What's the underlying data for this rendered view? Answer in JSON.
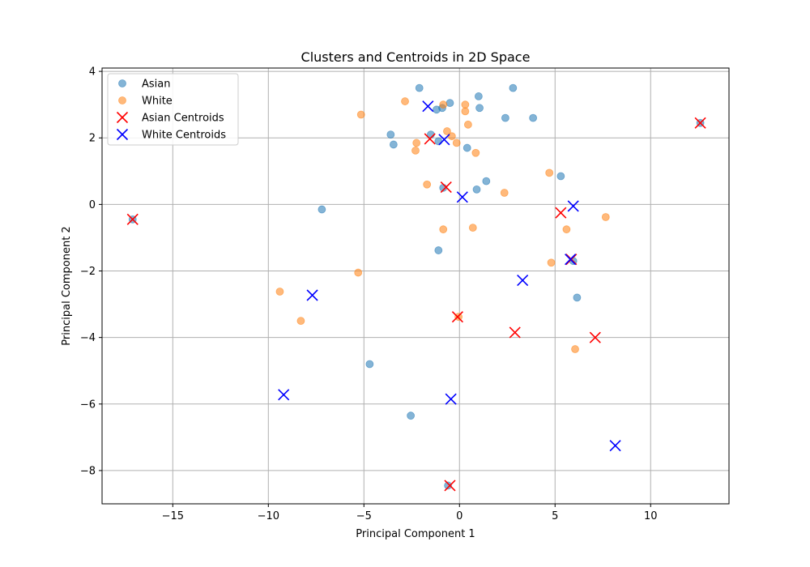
{
  "chart_data": {
    "type": "scatter",
    "title": "Clusters and Centroids in 2D Space",
    "xlabel": "Principal Component 1",
    "ylabel": "Principal Component 2",
    "xlim": [
      -18.7,
      14.1
    ],
    "ylim": [
      -9.0,
      4.1
    ],
    "xticks": [
      -15,
      -10,
      -5,
      0,
      5,
      10
    ],
    "yticks": [
      -8,
      -6,
      -4,
      -2,
      0,
      2,
      4
    ],
    "grid": true,
    "legend_position": "top-left",
    "series": [
      {
        "name": "Asian",
        "marker": "circle",
        "color": "#1f77b4",
        "points": [
          [
            -2.1,
            3.5
          ],
          [
            -1.2,
            2.85
          ],
          [
            -0.9,
            2.9
          ],
          [
            -0.5,
            3.05
          ],
          [
            1.0,
            3.25
          ],
          [
            1.05,
            2.9
          ],
          [
            2.8,
            3.5
          ],
          [
            2.4,
            2.6
          ],
          [
            3.85,
            2.6
          ],
          [
            -3.6,
            2.1
          ],
          [
            -3.45,
            1.8
          ],
          [
            -1.5,
            2.1
          ],
          [
            -1.1,
            1.9
          ],
          [
            0.4,
            1.7
          ],
          [
            -0.85,
            0.5
          ],
          [
            1.4,
            0.7
          ],
          [
            0.9,
            0.45
          ],
          [
            5.3,
            0.85
          ],
          [
            -7.2,
            -0.15
          ],
          [
            -1.1,
            -1.38
          ],
          [
            5.95,
            -1.7
          ],
          [
            6.15,
            -2.8
          ],
          [
            -4.7,
            -4.8
          ],
          [
            -2.55,
            -6.35
          ],
          [
            -0.6,
            -8.45
          ],
          [
            -17.1,
            -0.45
          ],
          [
            12.6,
            2.45
          ]
        ]
      },
      {
        "name": "White",
        "marker": "circle",
        "color": "#ff7f0e",
        "points": [
          [
            -5.15,
            2.7
          ],
          [
            -2.85,
            3.1
          ],
          [
            -0.85,
            3.0
          ],
          [
            0.3,
            3.0
          ],
          [
            0.3,
            2.8
          ],
          [
            0.45,
            2.4
          ],
          [
            -0.65,
            2.2
          ],
          [
            -0.4,
            2.05
          ],
          [
            -0.15,
            1.85
          ],
          [
            -2.25,
            1.85
          ],
          [
            -2.3,
            1.62
          ],
          [
            0.85,
            1.55
          ],
          [
            -1.7,
            0.6
          ],
          [
            4.7,
            0.95
          ],
          [
            2.35,
            0.35
          ],
          [
            -0.85,
            -0.75
          ],
          [
            0.7,
            -0.7
          ],
          [
            5.6,
            -0.75
          ],
          [
            7.65,
            -0.38
          ],
          [
            4.8,
            -1.75
          ],
          [
            -5.3,
            -2.05
          ],
          [
            -9.4,
            -2.62
          ],
          [
            -8.3,
            -3.5
          ],
          [
            6.05,
            -4.35
          ],
          [
            -0.05,
            -3.38
          ]
        ]
      },
      {
        "name": "Asian Centroids",
        "marker": "x",
        "color": "#ff0000",
        "points": [
          [
            -17.1,
            -0.45
          ],
          [
            12.6,
            2.45
          ],
          [
            -1.55,
            1.97
          ],
          [
            -0.7,
            0.52
          ],
          [
            5.3,
            -0.25
          ],
          [
            5.85,
            -1.65
          ],
          [
            -0.1,
            -3.38
          ],
          [
            2.9,
            -3.85
          ],
          [
            7.1,
            -4.0
          ],
          [
            -0.5,
            -8.45
          ]
        ]
      },
      {
        "name": "White Centroids",
        "marker": "x",
        "color": "#0000ff",
        "points": [
          [
            -1.65,
            2.95
          ],
          [
            -0.8,
            1.95
          ],
          [
            0.15,
            0.22
          ],
          [
            5.95,
            -0.05
          ],
          [
            5.8,
            -1.65
          ],
          [
            3.3,
            -2.28
          ],
          [
            -7.7,
            -2.73
          ],
          [
            -9.2,
            -5.72
          ],
          [
            -0.45,
            -5.85
          ],
          [
            8.15,
            -7.25
          ]
        ]
      }
    ]
  }
}
